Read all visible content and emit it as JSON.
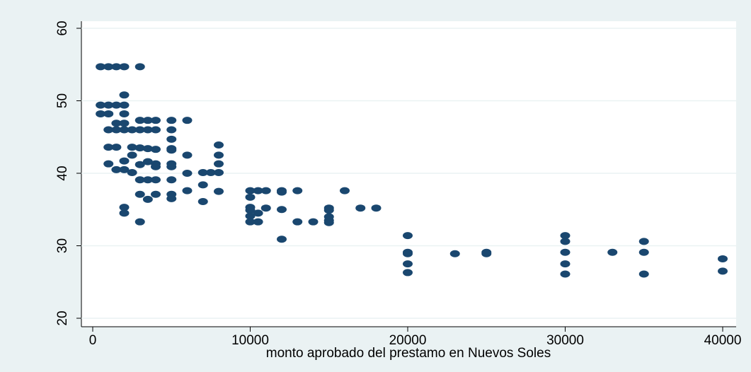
{
  "chart_data": {
    "type": "scatter",
    "xlabel": "monto aprobado del prestamo en Nuevos Soles",
    "color": "#1a476f",
    "grid": true,
    "xlim": [
      0,
      40000
    ],
    "ylim": [
      20,
      60
    ],
    "xticks": [
      0,
      10000,
      20000,
      30000,
      40000
    ],
    "yticks": [
      20,
      30,
      40,
      50,
      60
    ],
    "x": [
      500,
      500,
      500,
      1000,
      1000,
      1000,
      1000,
      1000,
      1000,
      1500,
      1500,
      1500,
      1500,
      1500,
      1500,
      2000,
      2000,
      2000,
      2000,
      2000,
      2000,
      2000,
      2000,
      2000,
      2000,
      2500,
      2500,
      2500,
      2500,
      3000,
      3000,
      3000,
      3000,
      3000,
      3000,
      3000,
      3000,
      3500,
      3500,
      3500,
      3500,
      3500,
      3500,
      4000,
      4000,
      4000,
      4000,
      4000,
      4000,
      4000,
      5000,
      5000,
      5000,
      5000,
      5000,
      5000,
      5000,
      5000,
      5000,
      5000,
      6000,
      6000,
      6000,
      6000,
      7000,
      7000,
      7000,
      7500,
      8000,
      8000,
      8000,
      8000,
      8000,
      10000,
      10000,
      10000,
      10000,
      10000,
      10000,
      10500,
      10500,
      10500,
      11000,
      11000,
      12000,
      12000,
      12000,
      12000,
      13000,
      13000,
      14000,
      15000,
      15000,
      15000,
      15000,
      15000,
      16000,
      17000,
      18000,
      20000,
      20000,
      20000,
      20000,
      20000,
      23000,
      25000,
      25000,
      30000,
      30000,
      30000,
      30000,
      30000,
      33000,
      35000,
      35000,
      35000,
      40000,
      40000
    ],
    "values": [
      54.7,
      49.4,
      48.2,
      54.7,
      49.4,
      48.2,
      46.0,
      43.6,
      41.3,
      54.7,
      49.4,
      46.9,
      46.0,
      43.6,
      40.5,
      54.7,
      50.8,
      49.4,
      48.2,
      46.9,
      46.0,
      41.7,
      40.5,
      35.3,
      34.5,
      46.0,
      43.6,
      42.5,
      40.1,
      54.7,
      47.3,
      46.0,
      43.5,
      41.2,
      39.1,
      37.1,
      33.3,
      47.3,
      46.0,
      43.4,
      41.6,
      39.1,
      36.4,
      47.3,
      46.0,
      43.3,
      41.3,
      40.9,
      39.1,
      37.1,
      47.3,
      46.0,
      44.7,
      43.4,
      43.2,
      41.3,
      40.9,
      39.1,
      37.1,
      36.5,
      47.3,
      42.5,
      40.0,
      37.6,
      40.1,
      38.4,
      36.1,
      40.1,
      43.9,
      42.5,
      41.3,
      40.1,
      37.5,
      37.6,
      36.7,
      35.3,
      34.9,
      34.1,
      33.3,
      37.6,
      34.5,
      33.3,
      37.6,
      35.2,
      37.6,
      37.4,
      35.0,
      30.9,
      37.6,
      33.3,
      33.3,
      35.2,
      34.9,
      34.0,
      33.5,
      33.2,
      37.6,
      35.2,
      35.2,
      31.4,
      29.1,
      28.9,
      27.5,
      26.3,
      28.9,
      29.1,
      28.9,
      31.4,
      30.6,
      29.1,
      27.5,
      26.1,
      29.1,
      30.6,
      29.1,
      26.1,
      28.2,
      26.5
    ]
  }
}
